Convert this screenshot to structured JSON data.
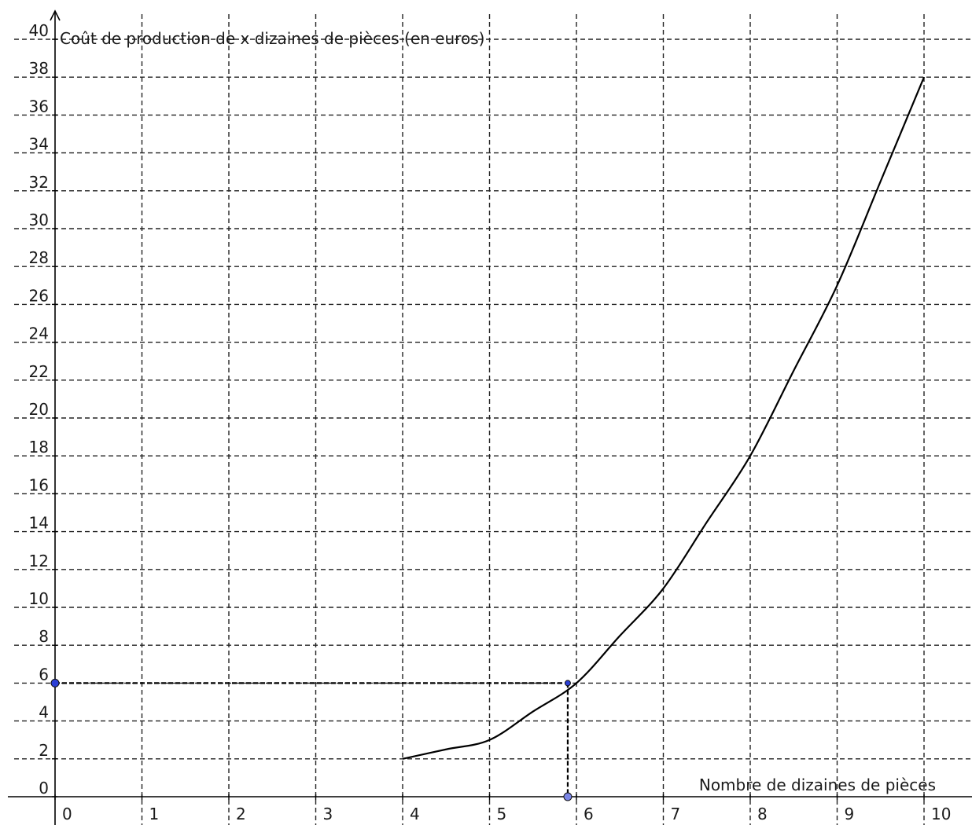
{
  "chart_data": {
    "type": "line",
    "xlabel": "Nombre de dizaines de pièces",
    "ylabel": "Coût  de production de x dizaines de pièces (en euros)",
    "xlim": [
      0,
      10
    ],
    "ylim": [
      0,
      40
    ],
    "x_ticks": [
      "0",
      "1",
      "2",
      "3",
      "4",
      "5",
      "6",
      "7",
      "8",
      "9",
      "10"
    ],
    "y_ticks": [
      "0",
      "2",
      "4",
      "6",
      "8",
      "10",
      "12",
      "14",
      "16",
      "18",
      "20",
      "22",
      "24",
      "26",
      "28",
      "30",
      "32",
      "34",
      "36",
      "38",
      "40"
    ],
    "grid": true,
    "series": [
      {
        "x": [
          4,
          4.5,
          5,
          5.5,
          6,
          6.5,
          7,
          7.5,
          8,
          8.5,
          9,
          9.5,
          10
        ],
        "y": [
          2,
          2.5,
          3,
          4.5,
          6,
          8.5,
          11,
          14.5,
          18,
          22.5,
          27,
          32.5,
          38
        ],
        "color": "#000000"
      }
    ],
    "guide_point": {
      "x": 5.9,
      "y": 6
    },
    "marker_color": "#2b3fd6"
  }
}
